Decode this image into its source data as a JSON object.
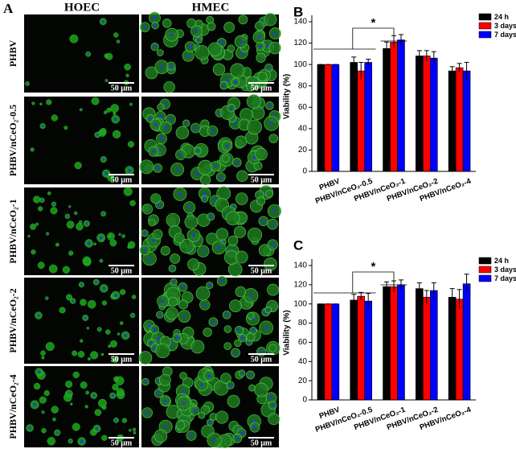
{
  "panel_a": {
    "label": "A",
    "columns": [
      "HOEC",
      "HMEC"
    ],
    "rows": [
      "PHBV",
      "PHBV/nCeO₂-0.5",
      "PHBV/nCeO₂-1",
      "PHBV/nCeO₂-2",
      "PHBV/nCeO₂-4"
    ],
    "scale_bar": "50 μm"
  },
  "chart_data": [
    {
      "type": "bar",
      "label": "B",
      "ylabel": "Viability (%)",
      "annotation": "*",
      "categories": [
        "PHBV",
        "PHBV/nCeO₂-0.5",
        "PHBV/nCeO₂-1",
        "PHBV/nCeO₂-2",
        "PHBV/nCeO₂-4"
      ],
      "series": [
        {
          "name": "24 h",
          "color": "#000000",
          "values": [
            100,
            102,
            115,
            108,
            94
          ],
          "errors": [
            0,
            5,
            6,
            5,
            4
          ]
        },
        {
          "name": "3 days",
          "color": "#ff0000",
          "values": [
            100,
            94,
            121,
            108,
            97
          ],
          "errors": [
            0,
            8,
            6,
            5,
            4
          ]
        },
        {
          "name": "7 days",
          "color": "#0000ff",
          "values": [
            100,
            102,
            123,
            106,
            94
          ],
          "errors": [
            0,
            3,
            5,
            6,
            8
          ]
        }
      ],
      "ylim": [
        0,
        140
      ],
      "yticks": [
        0,
        20,
        40,
        60,
        80,
        100,
        120,
        140
      ],
      "legend": "upper right"
    },
    {
      "type": "bar",
      "label": "C",
      "ylabel": "Viability (%)",
      "annotation": "*",
      "categories": [
        "PHBV",
        "PHBV/nCeO₂-0.5",
        "PHBV/nCeO₂-1",
        "PHBV/nCeO₂-2",
        "PHBV/nCeO₂-4"
      ],
      "series": [
        {
          "name": "24 h",
          "color": "#000000",
          "values": [
            100,
            104,
            118,
            116,
            107
          ],
          "errors": [
            0,
            6,
            5,
            6,
            9
          ]
        },
        {
          "name": "3 days",
          "color": "#ff0000",
          "values": [
            100,
            108,
            118,
            107,
            105
          ],
          "errors": [
            0,
            4,
            6,
            7,
            10
          ]
        },
        {
          "name": "7 days",
          "color": "#0000ff",
          "values": [
            100,
            103,
            120,
            114,
            121
          ],
          "errors": [
            0,
            8,
            5,
            8,
            10
          ]
        }
      ],
      "ylim": [
        0,
        140
      ],
      "yticks": [
        0,
        20,
        40,
        60,
        80,
        100,
        120,
        140
      ],
      "legend": "upper right"
    }
  ]
}
